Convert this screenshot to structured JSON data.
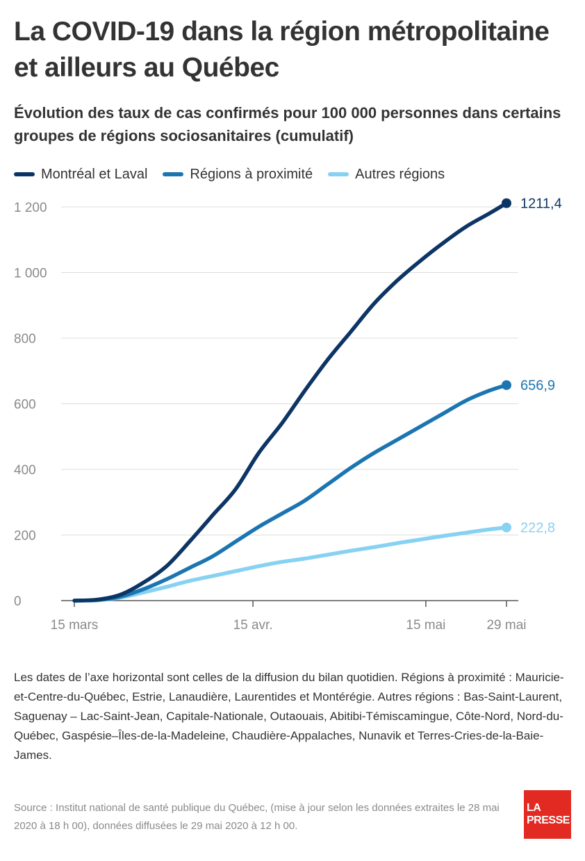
{
  "title": "La COVID-19 dans la région métropolitaine et ailleurs au Québec",
  "subtitle": "Évolution des taux de cas confirmés pour 100 000 personnes dans certains groupes de régions sociosanitaires (cumulatif)",
  "notes": "Les dates de l’axe horizontal sont celles de la diffusion du bilan quotidien. Régions à proximité : Mauricie-et-Centre-du-Québec, Estrie, Lanaudière, Laurentides et Montérégie. Autres régions : Bas-Saint-Laurent, Saguenay – Lac-Saint-Jean, Capitale-Nationale, Outaouais, Abitibi-Témiscamingue, Côte-Nord, Nord-du-Québec, Gaspésie–Îles-de-la-Madeleine, Chaudière-Appalaches, Nunavik et Terres-Cries-de-la-Baie-James.",
  "source": "Source : Institut national de santé publique du Québec, (mise à jour selon les données extraites le 28 mai 2020 à 18 h 00), données diffusées le 29 mai 2020 à 12 h 00.",
  "logo": {
    "line1": "LA",
    "line2": "PRESSE"
  },
  "colors": {
    "text": "#333333",
    "axis": "#555555",
    "grid": "#dddddd",
    "tick_label": "#8a8a8a",
    "logo_red": "#e22a22"
  },
  "chart_data": {
    "type": "line",
    "x_tick_labels": [
      "15 mars",
      "15 avr.",
      "15 mai",
      "29 mai"
    ],
    "x_tick_dates": [
      "2020-03-15",
      "2020-04-15",
      "2020-05-15",
      "2020-05-29"
    ],
    "x_range": [
      "2020-03-15",
      "2020-05-29"
    ],
    "y_range": [
      0,
      1200
    ],
    "y_ticks": [
      0,
      200,
      400,
      600,
      800,
      1000,
      1200
    ],
    "y_tick_labels": [
      "0",
      "200",
      "400",
      "600",
      "800",
      "1 000",
      "1 200"
    ],
    "grid": "horizontal",
    "legend_position": "top-left",
    "x": [
      "2020-03-15",
      "2020-03-19",
      "2020-03-23",
      "2020-03-27",
      "2020-03-31",
      "2020-04-04",
      "2020-04-08",
      "2020-04-12",
      "2020-04-16",
      "2020-04-20",
      "2020-04-24",
      "2020-04-28",
      "2020-05-02",
      "2020-05-06",
      "2020-05-10",
      "2020-05-14",
      "2020-05-18",
      "2020-05-22",
      "2020-05-26",
      "2020-05-29"
    ],
    "series": [
      {
        "name": "Montréal et Laval",
        "color": "#0c3565",
        "end_label": "1211,4",
        "values": [
          0,
          3,
          18,
          55,
          105,
          180,
          260,
          340,
          450,
          540,
          640,
          735,
          820,
          905,
          975,
          1035,
          1090,
          1140,
          1180,
          1211.4
        ]
      },
      {
        "name": "Régions à proximité",
        "color": "#1b75b1",
        "end_label": "656,9",
        "values": [
          0,
          2,
          12,
          35,
          65,
          100,
          135,
          180,
          225,
          265,
          305,
          355,
          405,
          450,
          490,
          530,
          570,
          610,
          640,
          656.9
        ]
      },
      {
        "name": "Autres régions",
        "color": "#87d1f3",
        "end_label": "222,8",
        "values": [
          0,
          1,
          9,
          25,
          42,
          60,
          75,
          90,
          105,
          118,
          128,
          140,
          152,
          163,
          175,
          186,
          197,
          207,
          217,
          222.8
        ]
      }
    ]
  }
}
